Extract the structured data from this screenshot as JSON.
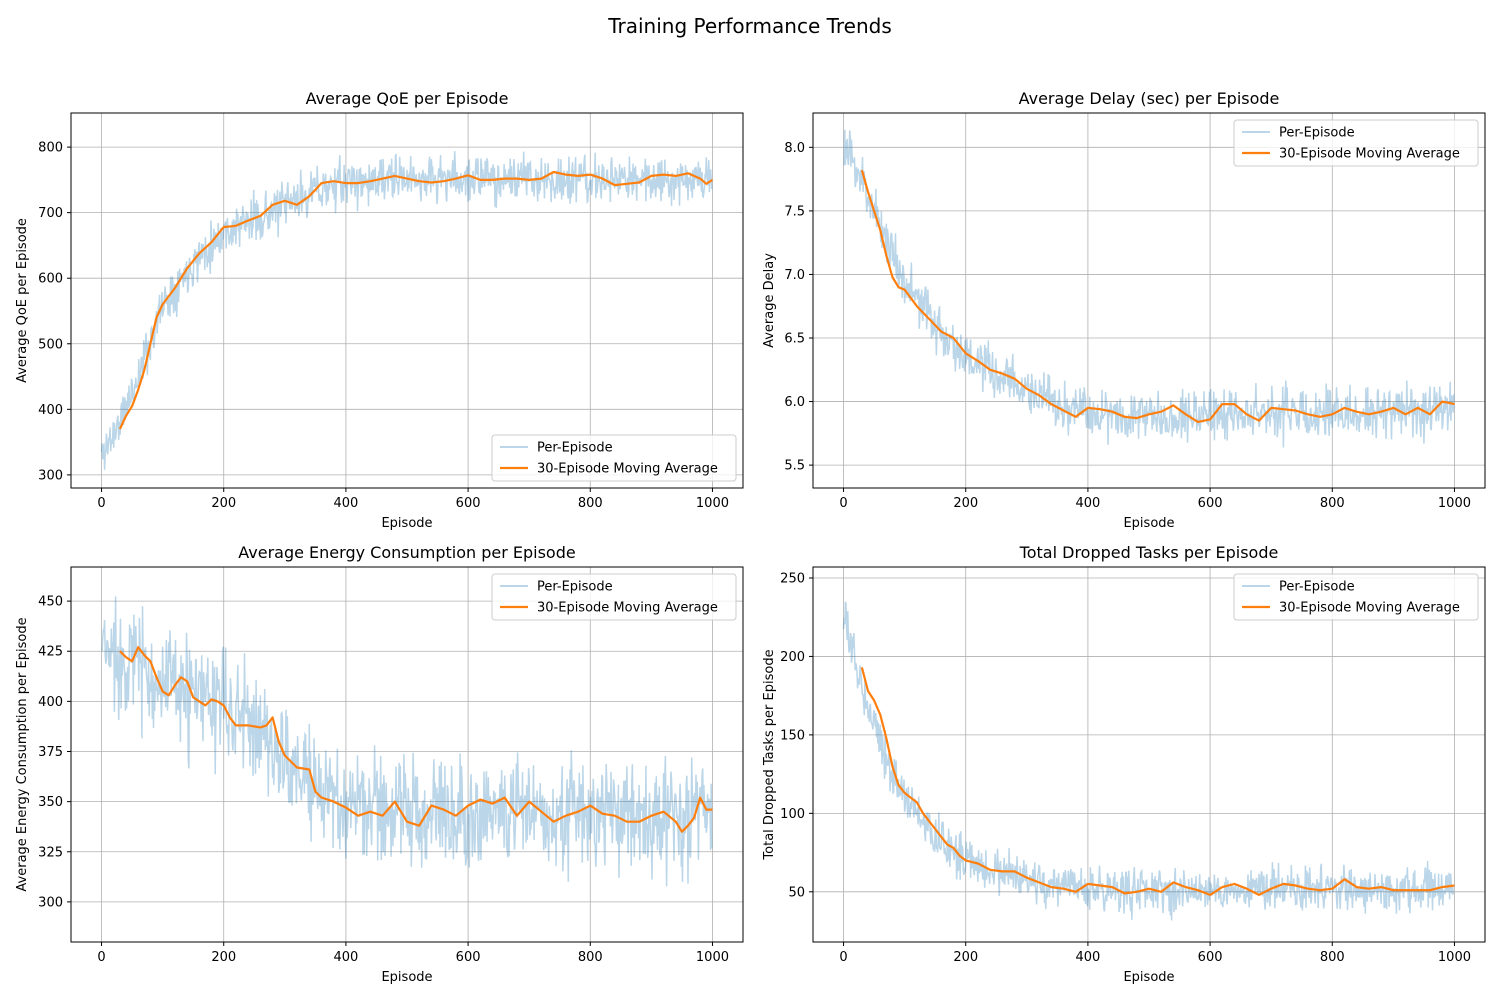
{
  "figure": {
    "suptitle": "Training Performance Trends"
  },
  "colors": {
    "raw": "#1f77b4",
    "ma": "#ff7f0e",
    "grid": "#b0b0b0",
    "axis": "#000000"
  },
  "legend": {
    "raw_label": "Per-Episode",
    "ma_label": "30-Episode Moving Average"
  },
  "chart_data": [
    {
      "id": "qoe",
      "type": "line",
      "title": "Average QoE per Episode",
      "xlabel": "Episode",
      "ylabel": "Average QoE per Episode",
      "xlim": [
        -50,
        1050
      ],
      "ylim": [
        280,
        852
      ],
      "xticks": [
        0,
        200,
        400,
        600,
        800,
        1000
      ],
      "yticks": [
        300,
        400,
        500,
        600,
        700,
        800
      ],
      "grid": true,
      "legend_position": "lower-right",
      "series": [
        {
          "name": "Per-Episode",
          "kind": "raw",
          "episodes": 1000,
          "trend_x": [
            0,
            30,
            60,
            100,
            150,
            200,
            250,
            300,
            350,
            400,
            500,
            600,
            700,
            800,
            900,
            1000
          ],
          "trend_y": [
            330,
            380,
            450,
            560,
            625,
            670,
            690,
            710,
            735,
            745,
            752,
            752,
            752,
            748,
            752,
            752
          ],
          "noise": 30,
          "seed": 11
        },
        {
          "name": "30-Episode Moving Average",
          "kind": "ma",
          "x": [
            30,
            40,
            50,
            60,
            70,
            80,
            90,
            100,
            120,
            140,
            160,
            180,
            200,
            220,
            240,
            260,
            280,
            300,
            320,
            340,
            360,
            380,
            400,
            420,
            440,
            460,
            480,
            500,
            520,
            540,
            560,
            580,
            600,
            620,
            640,
            660,
            680,
            700,
            720,
            740,
            760,
            780,
            800,
            820,
            840,
            860,
            880,
            900,
            920,
            940,
            960,
            980,
            990,
            1000
          ],
          "y": [
            370,
            390,
            405,
            430,
            460,
            500,
            540,
            560,
            585,
            615,
            638,
            655,
            678,
            680,
            688,
            695,
            712,
            718,
            712,
            725,
            745,
            748,
            745,
            745,
            748,
            752,
            756,
            752,
            748,
            746,
            748,
            752,
            757,
            750,
            750,
            752,
            752,
            750,
            752,
            762,
            758,
            756,
            758,
            752,
            742,
            744,
            746,
            756,
            758,
            756,
            760,
            752,
            744,
            750
          ]
        }
      ]
    },
    {
      "id": "delay",
      "type": "line",
      "title": "Average Delay (sec) per Episode",
      "xlabel": "Episode",
      "ylabel": "Average Delay",
      "xlim": [
        -50,
        1050
      ],
      "ylim": [
        5.32,
        8.27
      ],
      "xticks": [
        0,
        200,
        400,
        600,
        800,
        1000
      ],
      "yticks": [
        5.5,
        6.0,
        6.5,
        7.0,
        7.5,
        8.0
      ],
      "ytick_labels": [
        "5.5",
        "6.0",
        "6.5",
        "7.0",
        "7.5",
        "8.0"
      ],
      "grid": true,
      "legend_position": "upper-right",
      "series": [
        {
          "name": "Per-Episode",
          "kind": "raw",
          "episodes": 1000,
          "trend_x": [
            0,
            30,
            60,
            100,
            150,
            200,
            250,
            300,
            350,
            400,
            500,
            600,
            700,
            800,
            900,
            1000
          ],
          "trend_y": [
            8.0,
            7.75,
            7.4,
            6.95,
            6.6,
            6.35,
            6.2,
            6.1,
            5.95,
            5.92,
            5.9,
            5.9,
            5.92,
            5.9,
            5.92,
            5.95
          ],
          "noise": 0.17,
          "seed": 23
        },
        {
          "name": "30-Episode Moving Average",
          "kind": "ma",
          "x": [
            30,
            40,
            50,
            60,
            70,
            80,
            90,
            100,
            120,
            140,
            160,
            180,
            200,
            220,
            240,
            260,
            280,
            300,
            320,
            340,
            360,
            380,
            400,
            420,
            440,
            460,
            480,
            500,
            520,
            540,
            560,
            580,
            600,
            620,
            640,
            660,
            680,
            700,
            720,
            740,
            760,
            780,
            800,
            820,
            840,
            860,
            880,
            900,
            920,
            940,
            960,
            980,
            1000
          ],
          "y": [
            7.82,
            7.65,
            7.5,
            7.35,
            7.15,
            6.98,
            6.9,
            6.88,
            6.75,
            6.65,
            6.55,
            6.5,
            6.38,
            6.32,
            6.25,
            6.22,
            6.18,
            6.1,
            6.05,
            5.98,
            5.93,
            5.88,
            5.95,
            5.94,
            5.92,
            5.88,
            5.87,
            5.9,
            5.92,
            5.97,
            5.9,
            5.84,
            5.86,
            5.98,
            5.98,
            5.9,
            5.85,
            5.95,
            5.94,
            5.93,
            5.9,
            5.88,
            5.9,
            5.95,
            5.92,
            5.9,
            5.92,
            5.95,
            5.9,
            5.95,
            5.9,
            6.0,
            5.98
          ]
        }
      ]
    },
    {
      "id": "energy",
      "type": "line",
      "title": "Average Energy Consumption per Episode",
      "xlabel": "Episode",
      "ylabel": "Average Energy Consumption per Episode",
      "xlim": [
        -50,
        1050
      ],
      "ylim": [
        280,
        467
      ],
      "xticks": [
        0,
        200,
        400,
        600,
        800,
        1000
      ],
      "yticks": [
        300,
        325,
        350,
        375,
        400,
        425,
        450
      ],
      "grid": true,
      "legend_position": "upper-right",
      "series": [
        {
          "name": "Per-Episode",
          "kind": "raw",
          "episodes": 1000,
          "trend_x": [
            0,
            50,
            100,
            150,
            200,
            250,
            300,
            350,
            400,
            500,
            600,
            700,
            800,
            900,
            1000
          ],
          "trend_y": [
            425,
            422,
            408,
            402,
            398,
            388,
            372,
            355,
            348,
            346,
            346,
            345,
            344,
            342,
            345
          ],
          "noise": 24,
          "seed": 37
        },
        {
          "name": "30-Episode Moving Average",
          "kind": "ma",
          "x": [
            30,
            40,
            50,
            60,
            70,
            80,
            90,
            100,
            110,
            120,
            130,
            140,
            150,
            160,
            170,
            180,
            190,
            200,
            210,
            220,
            240,
            260,
            270,
            280,
            290,
            300,
            310,
            320,
            340,
            350,
            360,
            380,
            400,
            420,
            440,
            460,
            480,
            500,
            520,
            540,
            560,
            580,
            600,
            620,
            640,
            660,
            680,
            700,
            720,
            740,
            760,
            780,
            800,
            820,
            840,
            860,
            880,
            900,
            920,
            940,
            950,
            960,
            970,
            980,
            990,
            1000
          ],
          "y": [
            425,
            422,
            420,
            427,
            423,
            420,
            412,
            405,
            403,
            408,
            412,
            410,
            402,
            400,
            398,
            401,
            400,
            398,
            392,
            388,
            388,
            387,
            388,
            392,
            380,
            373,
            370,
            367,
            366,
            355,
            352,
            350,
            347,
            343,
            345,
            343,
            350,
            340,
            338,
            348,
            346,
            343,
            348,
            351,
            349,
            352,
            343,
            350,
            345,
            340,
            343,
            345,
            348,
            344,
            343,
            340,
            340,
            343,
            345,
            340,
            335,
            338,
            342,
            352,
            346,
            346
          ]
        }
      ]
    },
    {
      "id": "dropped",
      "type": "line",
      "title": "Total Dropped Tasks per Episode",
      "xlabel": "Episode",
      "ylabel": "Total Dropped Tasks per Episode",
      "xlim": [
        -50,
        1050
      ],
      "ylim": [
        18,
        257
      ],
      "xticks": [
        0,
        200,
        400,
        600,
        800,
        1000
      ],
      "yticks": [
        50,
        100,
        150,
        200,
        250
      ],
      "grid": true,
      "legend_position": "upper-right",
      "series": [
        {
          "name": "Per-Episode",
          "kind": "raw",
          "episodes": 1000,
          "trend_x": [
            0,
            20,
            40,
            60,
            80,
            100,
            150,
            200,
            250,
            300,
            350,
            400,
            500,
            600,
            700,
            800,
            900,
            1000
          ],
          "trend_y": [
            225,
            195,
            170,
            148,
            125,
            110,
            85,
            70,
            63,
            57,
            53,
            52,
            51,
            51,
            52,
            52,
            51,
            52
          ],
          "noise": 12,
          "seed": 53
        },
        {
          "name": "30-Episode Moving Average",
          "kind": "ma",
          "x": [
            30,
            40,
            50,
            60,
            70,
            80,
            90,
            100,
            110,
            120,
            130,
            140,
            150,
            160,
            170,
            180,
            190,
            200,
            220,
            240,
            260,
            280,
            300,
            320,
            340,
            360,
            380,
            400,
            420,
            440,
            460,
            480,
            500,
            520,
            540,
            560,
            580,
            600,
            620,
            640,
            660,
            680,
            700,
            720,
            740,
            760,
            780,
            800,
            820,
            840,
            860,
            880,
            900,
            920,
            940,
            960,
            980,
            1000
          ],
          "y": [
            193,
            178,
            172,
            163,
            148,
            130,
            118,
            113,
            110,
            107,
            100,
            95,
            90,
            85,
            80,
            78,
            73,
            70,
            68,
            64,
            63,
            63,
            59,
            56,
            53,
            52,
            50,
            55,
            54,
            53,
            49,
            50,
            52,
            50,
            56,
            53,
            51,
            48,
            53,
            55,
            52,
            48,
            52,
            55,
            54,
            52,
            51,
            52,
            58,
            53,
            52,
            53,
            51,
            51,
            51,
            51,
            53,
            54
          ]
        }
      ]
    }
  ]
}
